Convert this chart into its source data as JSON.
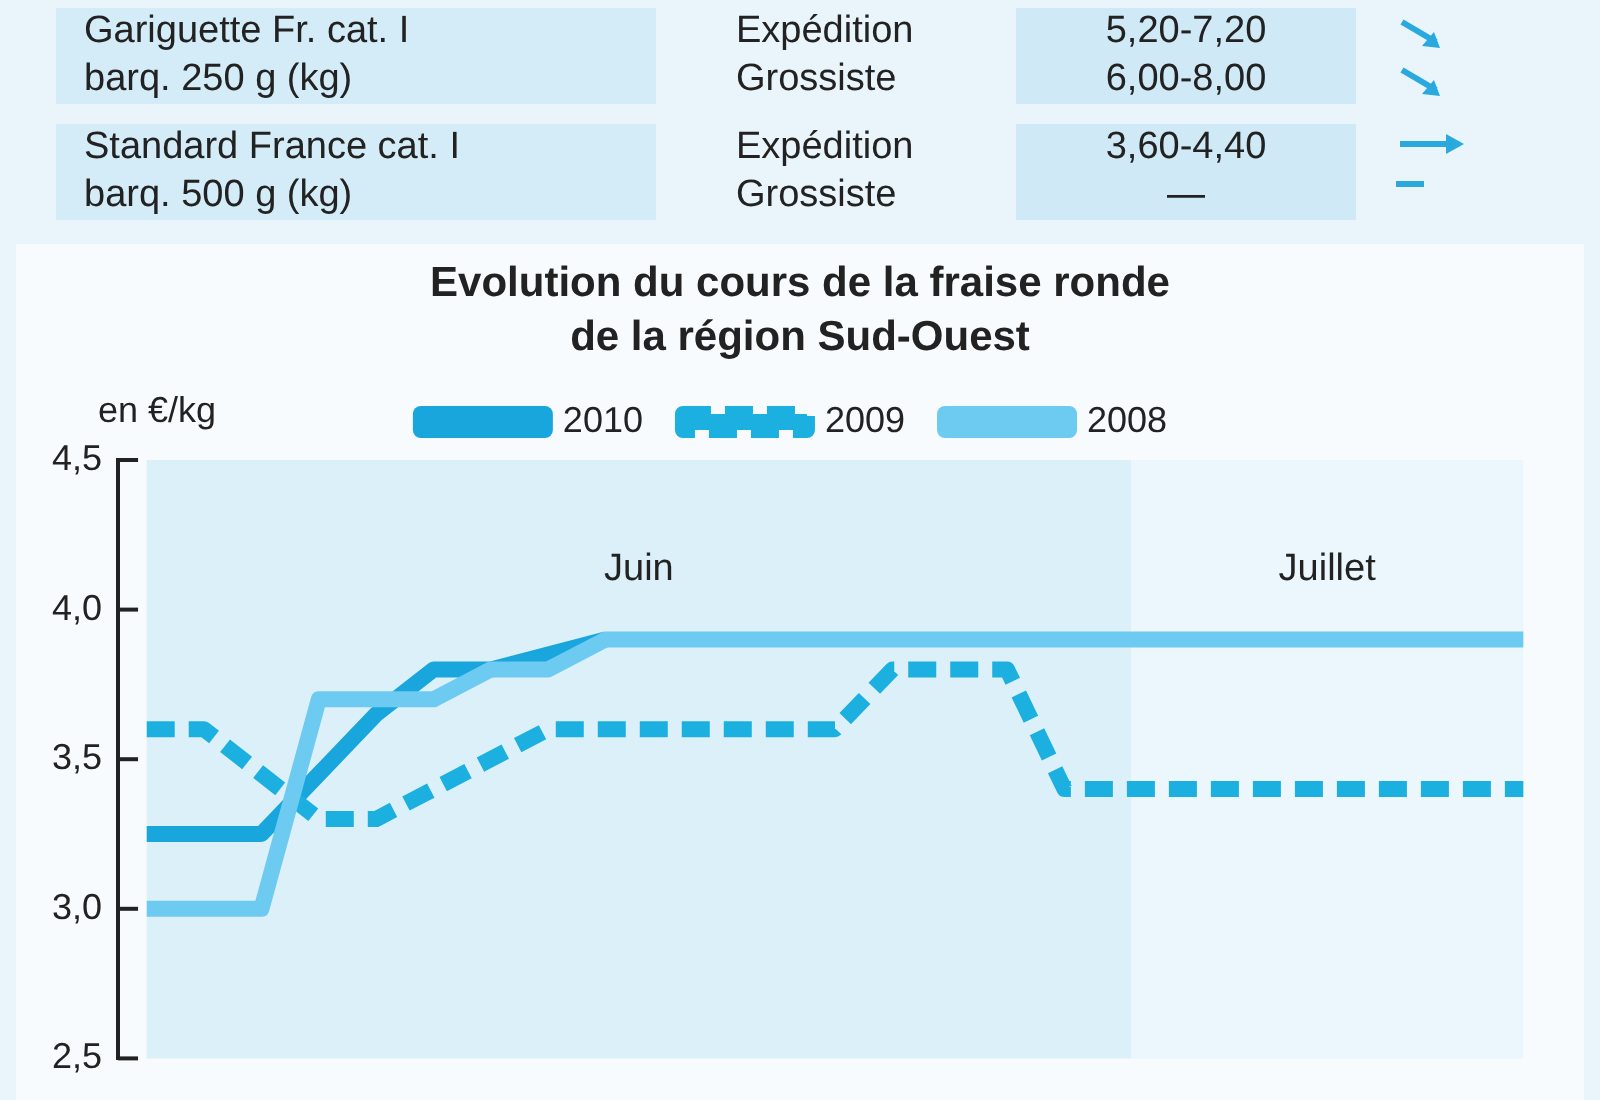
{
  "chart_data": {
    "type": "line",
    "title": "Evolution du cours de la fraise ronde de la région Sud-Ouest",
    "ylabel": "en €/kg",
    "categories": [
      null,
      null,
      null,
      null,
      null,
      null,
      null,
      null,
      null,
      null,
      null,
      null,
      null,
      null,
      null,
      null,
      null,
      null,
      null,
      null,
      null,
      null,
      null,
      null,
      null
    ],
    "series": [
      {
        "name": "2010",
        "color": "#18a6dd",
        "line_style": "solid",
        "values": [
          3.25,
          3.25,
          3.25,
          3.45,
          3.65,
          3.8,
          3.8,
          3.85,
          3.9,
          null,
          null,
          null,
          null,
          null,
          null,
          null,
          null,
          null,
          null,
          null,
          null,
          null,
          null,
          null,
          null
        ]
      },
      {
        "name": "2009",
        "color": "#1cb0e0",
        "line_style": "dashed",
        "values": [
          3.6,
          3.6,
          3.45,
          3.3,
          3.3,
          3.4,
          3.5,
          3.6,
          3.6,
          3.6,
          3.6,
          3.6,
          3.6,
          3.8,
          3.8,
          3.8,
          3.4,
          3.4,
          3.4,
          3.4,
          3.4,
          3.4,
          3.4,
          3.4,
          3.4
        ]
      },
      {
        "name": "2008",
        "color": "#6dcaf0",
        "line_style": "solid",
        "values": [
          3.0,
          3.0,
          3.0,
          3.7,
          3.7,
          3.7,
          3.8,
          3.8,
          3.9,
          3.9,
          3.9,
          3.9,
          3.9,
          3.9,
          3.9,
          3.9,
          3.9,
          3.9,
          3.9,
          3.9,
          3.9,
          3.9,
          3.9,
          3.9,
          3.9
        ]
      }
    ],
    "ylim": [
      2.5,
      4.5
    ],
    "yticks": [
      {
        "value": 2.5,
        "label": "2,5"
      },
      {
        "value": 3.0,
        "label": "3,0"
      },
      {
        "value": 3.5,
        "label": "3,5"
      },
      {
        "value": 4.0,
        "label": "4,0"
      },
      {
        "value": 4.5,
        "label": "4,5"
      }
    ],
    "grid": false,
    "legend": "top",
    "marker": "none",
    "tick_labels": "y",
    "annotations": [
      "Gariguette Fr. cat. I",
      "Expédition",
      "5,20-7,20",
      "barq. 250 g (kg)",
      "Grossiste",
      "6,00-8,00",
      "Standard France cat. I",
      "Expédition",
      "3,60-4,40",
      "barq. 500 g (kg)",
      "Grossiste",
      "—",
      "Juin",
      "Juillet"
    ]
  }
}
